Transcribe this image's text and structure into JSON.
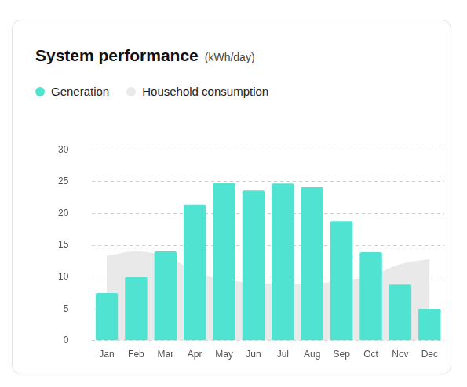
{
  "chart_data": {
    "type": "bar",
    "title": "System performance",
    "subtitle": "(kWh/day)",
    "categories": [
      "Jan",
      "Feb",
      "Mar",
      "Apr",
      "May",
      "Jun",
      "Jul",
      "Aug",
      "Sep",
      "Oct",
      "Nov",
      "Dec"
    ],
    "series": [
      {
        "name": "Generation",
        "type": "bar",
        "color": "#50e3d2",
        "values": [
          7.5,
          10,
          14,
          21.3,
          24.8,
          23.6,
          24.7,
          24.1,
          18.8,
          13.9,
          8.8,
          5
        ]
      },
      {
        "name": "Household consumption",
        "type": "area",
        "color": "#e9e9e9",
        "values": [
          13.3,
          14,
          13.2,
          11,
          9.6,
          9.1,
          9,
          9,
          9.4,
          10.2,
          12,
          12.8
        ]
      }
    ],
    "ylim": [
      0,
      30
    ],
    "yticks": [
      0,
      5,
      10,
      15,
      20,
      25,
      30
    ],
    "grid": true,
    "legend": "top-left"
  }
}
